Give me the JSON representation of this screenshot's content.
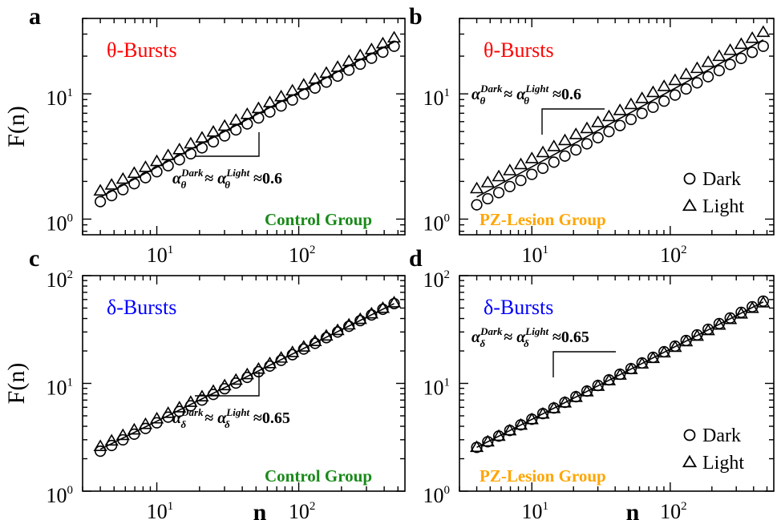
{
  "colors": {
    "theta": "#ff0000",
    "delta": "#0000ff",
    "control": "#1a8a1a",
    "lesion": "#ffa500",
    "ink": "#000000"
  },
  "legend": {
    "dark": "Dark",
    "light": "Light"
  },
  "chart_data": [
    {
      "id": "a",
      "type": "scatter",
      "panel_label": "a",
      "title": "θ-Bursts",
      "title_color": "theta",
      "group_label": "Control Group",
      "group_color": "control",
      "slope": {
        "sym": "θ",
        "value": "≈0.6"
      },
      "ylabel": "F(n)",
      "xlabel": "",
      "xscale": "log",
      "yscale": "log",
      "xlim": [
        3,
        560
      ],
      "ylim": [
        0.75,
        40
      ],
      "y_ticks": [
        1,
        10
      ],
      "x_ticks": [
        10,
        100
      ],
      "legend": false,
      "slope_triangle": "below",
      "series": [
        {
          "name": "Dark",
          "marker": "circle",
          "n0": 4,
          "n1": 470,
          "y0": 1.38,
          "y1": 24
        },
        {
          "name": "Light",
          "marker": "triangle",
          "n0": 4,
          "n1": 470,
          "y0": 1.68,
          "y1": 28
        }
      ],
      "fit": {
        "n0": 4,
        "n1": 470,
        "y0": 1.5,
        "y1": 26
      }
    },
    {
      "id": "b",
      "type": "scatter",
      "panel_label": "b",
      "title": "θ-Bursts",
      "title_color": "theta",
      "group_label": "PZ-Lesion Group",
      "group_color": "lesion",
      "slope": {
        "sym": "θ",
        "value": "≈0.6"
      },
      "ylabel": "",
      "xlabel": "",
      "xscale": "log",
      "yscale": "log",
      "xlim": [
        3,
        560
      ],
      "ylim": [
        0.75,
        40
      ],
      "y_ticks": [
        1,
        10
      ],
      "x_ticks": [
        10,
        100
      ],
      "legend": true,
      "slope_triangle": "above",
      "series": [
        {
          "name": "Dark",
          "marker": "circle",
          "n0": 4,
          "n1": 470,
          "y0": 1.3,
          "y1": 24
        },
        {
          "name": "Light",
          "marker": "triangle",
          "n0": 4,
          "n1": 470,
          "y0": 1.75,
          "y1": 31
        }
      ],
      "fit": {
        "n0": 4,
        "n1": 470,
        "y0": 1.5,
        "y1": 27
      }
    },
    {
      "id": "c",
      "type": "scatter",
      "panel_label": "c",
      "title": "δ-Bursts",
      "title_color": "delta",
      "group_label": "Control Group",
      "group_color": "control",
      "slope": {
        "sym": "δ",
        "value": "≈0.65"
      },
      "ylabel": "F(n)",
      "xlabel": "n",
      "xscale": "log",
      "yscale": "log",
      "xlim": [
        3,
        560
      ],
      "ylim": [
        1,
        100
      ],
      "y_ticks": [
        1,
        10,
        100
      ],
      "x_ticks": [
        10,
        100
      ],
      "legend": false,
      "slope_triangle": "below",
      "series": [
        {
          "name": "Dark",
          "marker": "circle",
          "n0": 4,
          "n1": 470,
          "y0": 2.35,
          "y1": 55
        },
        {
          "name": "Light",
          "marker": "triangle",
          "n0": 4,
          "n1": 470,
          "y0": 2.6,
          "y1": 56
        }
      ],
      "fit": {
        "n0": 4,
        "n1": 470,
        "y0": 2.45,
        "y1": 55
      }
    },
    {
      "id": "d",
      "type": "scatter",
      "panel_label": "d",
      "title": "δ-Bursts",
      "title_color": "delta",
      "group_label": "PZ-Lesion Group",
      "group_color": "lesion",
      "slope": {
        "sym": "δ",
        "value": "≈0.65"
      },
      "ylabel": "",
      "xlabel": "n",
      "xscale": "log",
      "yscale": "log",
      "xlim": [
        3,
        560
      ],
      "ylim": [
        1,
        100
      ],
      "y_ticks": [
        1,
        10,
        100
      ],
      "x_ticks": [
        10,
        100
      ],
      "legend": true,
      "slope_triangle": "above",
      "series": [
        {
          "name": "Dark",
          "marker": "circle",
          "n0": 4,
          "n1": 470,
          "y0": 2.55,
          "y1": 58
        },
        {
          "name": "Light",
          "marker": "triangle",
          "n0": 4,
          "n1": 470,
          "y0": 2.55,
          "y1": 56
        }
      ],
      "fit": {
        "n0": 4,
        "n1": 470,
        "y0": 2.55,
        "y1": 57
      }
    }
  ]
}
